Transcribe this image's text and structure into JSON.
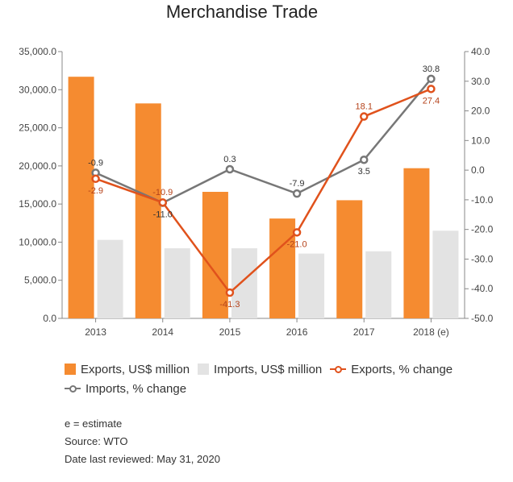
{
  "chart_data": {
    "type": "bar",
    "title": "Merchandise Trade",
    "categories": [
      "2013",
      "2014",
      "2015",
      "2016",
      "2017",
      "2018 (e)"
    ],
    "bar_series": [
      {
        "name": "Exports, US$ million",
        "color": "#f58b30",
        "values": [
          31700,
          28200,
          16600,
          13100,
          15500,
          19700
        ]
      },
      {
        "name": "Imports, US$ million",
        "color": "#e3e3e3",
        "values": [
          10300,
          9200,
          9200,
          8500,
          8800,
          11500
        ]
      }
    ],
    "line_series": [
      {
        "name": "Exports, % change",
        "color": "#e0521c",
        "values": [
          -2.9,
          -10.9,
          -41.3,
          -21.0,
          18.1,
          27.4
        ],
        "labels": [
          "-2.9",
          "-10.9",
          "-41.3",
          "-21.0",
          "18.1",
          "27.4"
        ]
      },
      {
        "name": "Imports, % change",
        "color": "#777777",
        "values": [
          -0.9,
          -11.0,
          0.3,
          -7.9,
          3.5,
          30.8
        ],
        "labels": [
          "-0.9",
          "-11.0",
          "0.3",
          "-7.9",
          "3.5",
          "30.8"
        ]
      }
    ],
    "y_left": {
      "min": 0,
      "max": 35000,
      "ticks": [
        "0.0",
        "5,000.0",
        "10,000.0",
        "15,000.0",
        "20,000.0",
        "25,000.0",
        "30,000.0",
        "35,000.0"
      ]
    },
    "y_right": {
      "min": -50,
      "max": 40,
      "ticks": [
        "-50.0",
        "-40.0",
        "-30.0",
        "-20.0",
        "-10.0",
        "0.0",
        "10.0",
        "20.0",
        "30.0",
        "40.0"
      ]
    },
    "grid": false,
    "legend_position": "bottom"
  },
  "notes": [
    "e = estimate",
    "Source: WTO",
    "Date last reviewed: May 31, 2020"
  ]
}
